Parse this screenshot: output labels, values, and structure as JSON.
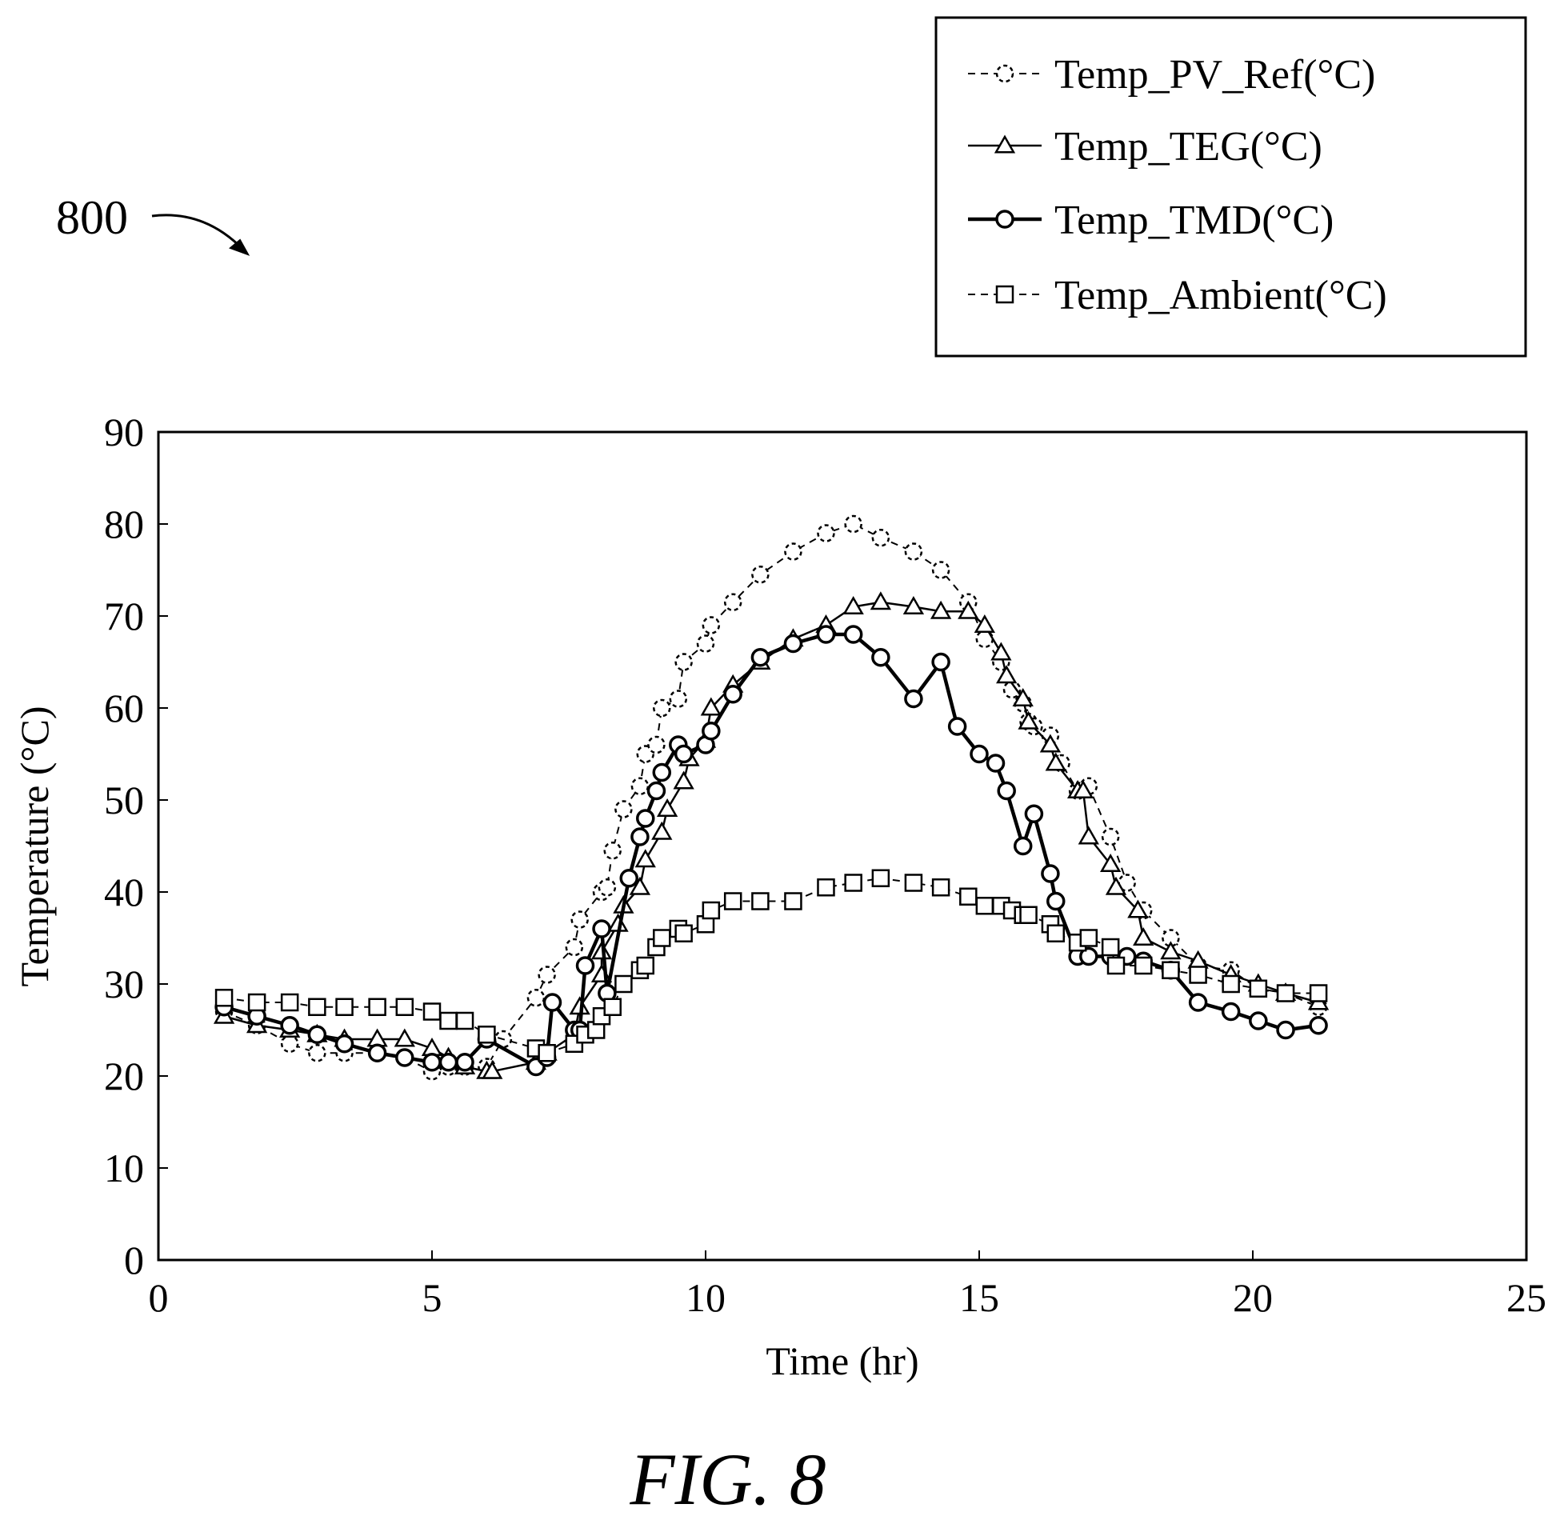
{
  "figure": {
    "ref_label": "800",
    "caption": "FIG. 8"
  },
  "chart_data": {
    "type": "line",
    "xlabel": "Time (hr)",
    "ylabel": "Temperature (°C)",
    "xlim": [
      0,
      25
    ],
    "ylim": [
      0,
      90
    ],
    "xticks": [
      0,
      5,
      10,
      15,
      20,
      25
    ],
    "yticks": [
      0,
      10,
      20,
      30,
      40,
      50,
      60,
      70,
      80,
      90
    ],
    "grid": false,
    "legend_position": "top-right, outside plot",
    "series": [
      {
        "name": "Temp_PV_Ref(°C)",
        "marker": "circle-dashed",
        "line": "dashed",
        "x": [
          1.2,
          1.8,
          2.4,
          2.9,
          3.4,
          4.0,
          4.5,
          5.0,
          5.3,
          5.6,
          6.0,
          6.3,
          6.9,
          7.1,
          7.6,
          7.7,
          8.1,
          8.2,
          8.3,
          8.5,
          8.8,
          8.9,
          9.1,
          9.2,
          9.5,
          9.6,
          10.0,
          10.1,
          10.5,
          11.0,
          11.6,
          12.2,
          12.7,
          13.2,
          13.8,
          14.3,
          14.8,
          15.1,
          15.4,
          15.6,
          15.8,
          15.9,
          16.0,
          16.3,
          16.5,
          16.8,
          17.0,
          17.4,
          17.7,
          18.0,
          18.5,
          19.0,
          19.6,
          20.1,
          20.6,
          21.2
        ],
        "y": [
          27,
          25.5,
          23.5,
          22.5,
          22.5,
          22.5,
          22.0,
          20.5,
          21.0,
          21.0,
          21.0,
          24.0,
          28.5,
          31.0,
          34.0,
          37.0,
          40.0,
          40.5,
          44.5,
          49.0,
          51.5,
          55.0,
          56.0,
          60.0,
          61.0,
          65.0,
          67.0,
          69.0,
          71.5,
          74.5,
          77.0,
          79.0,
          80.0,
          78.5,
          77.0,
          75.0,
          71.5,
          67.5,
          65.0,
          62.0,
          60.5,
          58.5,
          58.0,
          57.0,
          54.0,
          51.0,
          51.5,
          46.0,
          41.0,
          38.0,
          35.0,
          32.0,
          31.5,
          29.5,
          29.0,
          27.5
        ]
      },
      {
        "name": "Temp_TEG(°C)",
        "marker": "triangle",
        "line": "solid",
        "x": [
          1.2,
          1.8,
          2.4,
          2.9,
          3.4,
          4.0,
          4.5,
          5.0,
          5.3,
          5.6,
          6.0,
          6.1,
          6.9,
          7.1,
          7.6,
          7.7,
          8.1,
          8.1,
          8.4,
          8.5,
          8.8,
          8.9,
          9.2,
          9.3,
          9.6,
          9.7,
          10.0,
          10.1,
          10.5,
          11.0,
          11.6,
          12.2,
          12.7,
          13.2,
          13.8,
          14.3,
          14.8,
          15.1,
          15.4,
          15.5,
          15.8,
          15.9,
          16.3,
          16.4,
          16.8,
          16.9,
          17.0,
          17.4,
          17.5,
          17.9,
          18.0,
          18.5,
          19.0,
          19.6,
          20.1,
          20.6,
          21.2
        ],
        "y": [
          26.5,
          25.5,
          25.0,
          24.5,
          24.0,
          24.0,
          24.0,
          23.0,
          22.0,
          21.0,
          20.5,
          20.5,
          21.5,
          22.5,
          24.5,
          27.5,
          31.0,
          33.5,
          36.5,
          38.5,
          40.5,
          43.5,
          46.5,
          49.0,
          52.0,
          54.5,
          56.5,
          60.0,
          62.5,
          65.0,
          67.5,
          69.0,
          71.0,
          71.5,
          71.0,
          70.5,
          70.5,
          69.0,
          66.0,
          63.5,
          61.0,
          58.5,
          56.0,
          54.0,
          51.0,
          51.0,
          46.0,
          43.0,
          40.5,
          38.0,
          35.0,
          33.5,
          32.5,
          31.0,
          30.0,
          29.0,
          28.0
        ]
      },
      {
        "name": "Temp_TMD(°C)",
        "marker": "circle",
        "line": "solid-thick",
        "x": [
          1.2,
          1.8,
          2.4,
          2.9,
          3.4,
          4.0,
          4.5,
          5.0,
          5.3,
          5.6,
          6.0,
          6.9,
          7.1,
          7.2,
          7.6,
          7.7,
          7.8,
          8.1,
          8.2,
          8.6,
          8.8,
          8.9,
          9.1,
          9.2,
          9.5,
          9.6,
          10.0,
          10.1,
          10.5,
          11.0,
          11.6,
          12.2,
          12.7,
          13.2,
          13.8,
          14.3,
          14.6,
          15.0,
          15.3,
          15.5,
          15.8,
          16.0,
          16.3,
          16.4,
          16.8,
          17.0,
          17.4,
          17.7,
          18.0,
          18.5,
          19.0,
          19.6,
          20.1,
          20.6,
          21.2
        ],
        "y": [
          27.5,
          26.5,
          25.5,
          24.5,
          23.5,
          22.5,
          22.0,
          21.5,
          21.5,
          21.5,
          24.0,
          21.0,
          22.0,
          28.0,
          25.0,
          25.0,
          32.0,
          36.0,
          29.0,
          41.5,
          46.0,
          48.0,
          51.0,
          53.0,
          56.0,
          55.0,
          56.0,
          57.5,
          61.5,
          65.5,
          67.0,
          68.0,
          68.0,
          65.5,
          61.0,
          65.0,
          58.0,
          55.0,
          54.0,
          51.0,
          45.0,
          48.5,
          42.0,
          39.0,
          33.0,
          33.0,
          33.0,
          33.0,
          32.5,
          31.5,
          28.0,
          27.0,
          26.0,
          25.0,
          25.5
        ]
      },
      {
        "name": "Temp_Ambient(°C)",
        "marker": "square",
        "line": "dashed",
        "x": [
          1.2,
          1.8,
          2.4,
          2.9,
          3.4,
          4.0,
          4.5,
          5.0,
          5.3,
          5.6,
          6.0,
          6.9,
          7.1,
          7.6,
          7.8,
          8.0,
          8.1,
          8.3,
          8.5,
          8.8,
          8.9,
          9.1,
          9.2,
          9.5,
          9.6,
          10.0,
          10.1,
          10.5,
          11.0,
          11.6,
          12.2,
          12.7,
          13.2,
          13.8,
          14.3,
          14.8,
          15.1,
          15.4,
          15.6,
          15.8,
          15.9,
          16.3,
          16.4,
          16.8,
          17.0,
          17.4,
          17.5,
          18.0,
          18.5,
          19.0,
          19.6,
          20.1,
          20.6,
          21.2
        ],
        "y": [
          28.5,
          28.0,
          28.0,
          27.5,
          27.5,
          27.5,
          27.5,
          27.0,
          26.0,
          26.0,
          24.5,
          23.0,
          22.5,
          23.5,
          24.5,
          25.0,
          26.5,
          27.5,
          30.0,
          31.5,
          32.0,
          34.0,
          35.0,
          36.0,
          35.5,
          36.5,
          38.0,
          39.0,
          39.0,
          39.0,
          40.5,
          41.0,
          41.5,
          41.0,
          40.5,
          39.5,
          38.5,
          38.5,
          38.0,
          37.5,
          37.5,
          36.5,
          35.5,
          34.5,
          35.0,
          34.0,
          32.0,
          32.0,
          31.5,
          31.0,
          30.0,
          29.5,
          29.0,
          29.0
        ]
      }
    ]
  }
}
